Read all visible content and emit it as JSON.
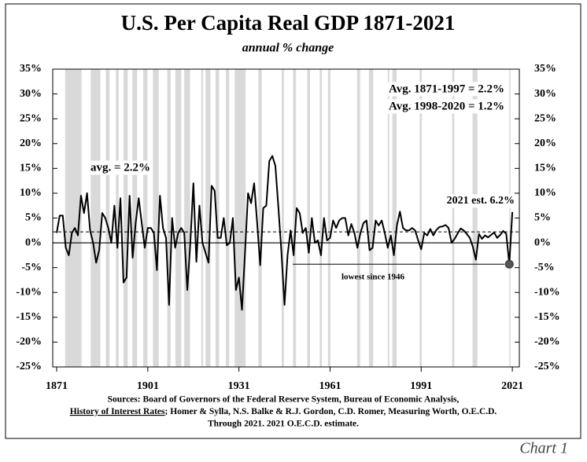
{
  "chart_data": {
    "type": "line",
    "title": "U.S. Per Capita Real GDP 1871-2021",
    "subtitle": "annual % change",
    "x": [
      1871,
      1872,
      1873,
      1874,
      1875,
      1876,
      1877,
      1878,
      1879,
      1880,
      1881,
      1882,
      1883,
      1884,
      1885,
      1886,
      1887,
      1888,
      1889,
      1890,
      1891,
      1892,
      1893,
      1894,
      1895,
      1896,
      1897,
      1898,
      1899,
      1900,
      1901,
      1902,
      1903,
      1904,
      1905,
      1906,
      1907,
      1908,
      1909,
      1910,
      1911,
      1912,
      1913,
      1914,
      1915,
      1916,
      1917,
      1918,
      1919,
      1920,
      1921,
      1922,
      1923,
      1924,
      1925,
      1926,
      1927,
      1928,
      1929,
      1930,
      1931,
      1932,
      1933,
      1934,
      1935,
      1936,
      1937,
      1938,
      1939,
      1940,
      1941,
      1942,
      1943,
      1944,
      1945,
      1946,
      1947,
      1948,
      1949,
      1950,
      1951,
      1952,
      1953,
      1954,
      1955,
      1956,
      1957,
      1958,
      1959,
      1960,
      1961,
      1962,
      1963,
      1964,
      1965,
      1966,
      1967,
      1968,
      1969,
      1970,
      1971,
      1972,
      1973,
      1974,
      1975,
      1976,
      1977,
      1978,
      1979,
      1980,
      1981,
      1982,
      1983,
      1984,
      1985,
      1986,
      1987,
      1988,
      1989,
      1990,
      1991,
      1992,
      1993,
      1994,
      1995,
      1996,
      1997,
      1998,
      1999,
      2000,
      2001,
      2002,
      2003,
      2004,
      2005,
      2006,
      2007,
      2008,
      2009,
      2010,
      2011,
      2012,
      2013,
      2014,
      2015,
      2016,
      2017,
      2018,
      2019,
      2020,
      2021
    ],
    "values": [
      2,
      5.5,
      5.5,
      -1,
      -2.5,
      2,
      3,
      1.5,
      9.5,
      6,
      10,
      2.5,
      0,
      -4,
      -1.5,
      6,
      5,
      3,
      0,
      7.5,
      -1,
      9,
      -8,
      -7,
      9.5,
      -3,
      4,
      9,
      4,
      -1,
      3,
      3,
      2,
      -5.5,
      9.5,
      3,
      1,
      -12.5,
      5,
      -1,
      2,
      3,
      2,
      -9.5,
      0,
      12,
      -3.8,
      7.5,
      0,
      -2,
      -4,
      11.5,
      10.5,
      1,
      1,
      5,
      -0.5,
      0,
      5,
      -9.5,
      -7,
      -13.5,
      -2,
      10,
      8,
      12,
      4,
      -4.5,
      7,
      7.5,
      16.5,
      17.5,
      15.5,
      7,
      -2,
      -12.5,
      -2.5,
      2.5,
      -2.5,
      7,
      6,
      2,
      3,
      -2,
      5,
      0,
      0.5,
      -2.5,
      5,
      0.5,
      1,
      4.5,
      3,
      4.5,
      5,
      5,
      1.5,
      3.8,
      2,
      -1,
      2,
      4,
      4.5,
      -1.5,
      -1,
      4.5,
      3.5,
      4.5,
      2,
      -1,
      1.5,
      -2.5,
      3.5,
      6.3,
      3,
      2.5,
      2.5,
      3,
      2.5,
      0.5,
      -1.3,
      2,
      1.5,
      2.8,
      1.5,
      2.6,
      3.2,
      3.3,
      3.6,
      3,
      0,
      0.8,
      1.9,
      2.9,
      2.5,
      1.8,
      1,
      -0.8,
      -3.4,
      1.8,
      0.8,
      1.5,
      1.1,
      1.6,
      2.1,
      1,
      1.6,
      2.4,
      1.8,
      -4.3,
      6.2
    ],
    "color": "#000000",
    "average": 2.2,
    "shaded_periods": [
      [
        1873.8,
        1879.2
      ],
      [
        1882.2,
        1885.4
      ],
      [
        1887.2,
        1888.4
      ],
      [
        1890.5,
        1891.4
      ],
      [
        1893.0,
        1894.4
      ],
      [
        1895.9,
        1897.5
      ],
      [
        1899.5,
        1900.9
      ],
      [
        1902.7,
        1904.6
      ],
      [
        1907.4,
        1908.5
      ],
      [
        1910.1,
        1912.0
      ],
      [
        1913.0,
        1914.9
      ],
      [
        1918.6,
        1919.2
      ],
      [
        1920.0,
        1921.6
      ],
      [
        1923.3,
        1924.5
      ],
      [
        1926.7,
        1927.8
      ],
      [
        1929.6,
        1933.2
      ],
      [
        1937.4,
        1938.5
      ],
      [
        1945.1,
        1945.8
      ],
      [
        1948.8,
        1949.8
      ],
      [
        1953.5,
        1954.4
      ],
      [
        1957.6,
        1958.3
      ],
      [
        1960.3,
        1961.1
      ],
      [
        1969.9,
        1970.9
      ],
      [
        1973.8,
        1975.2
      ],
      [
        1980.0,
        1980.5
      ],
      [
        1981.5,
        1982.9
      ],
      [
        1990.5,
        1991.2
      ],
      [
        2001.2,
        2001.9
      ],
      [
        2007.9,
        2009.5
      ],
      [
        2020.0,
        2020.4
      ]
    ],
    "xlim": [
      1869.7,
      2023.3
    ],
    "xticks": [
      1871,
      1901,
      1931,
      1961,
      1991,
      2021
    ],
    "ylim": [
      -25,
      35
    ],
    "yticks": [
      {
        "value": -25,
        "label": "-25%"
      },
      {
        "value": -20,
        "label": "-20%"
      },
      {
        "value": -15,
        "label": "-15%"
      },
      {
        "value": -10,
        "label": "-10%"
      },
      {
        "value": -5,
        "label": "-5%"
      },
      {
        "value": 0,
        "label": "0%"
      },
      {
        "value": 5,
        "label": "5%"
      },
      {
        "value": 10,
        "label": "10%"
      },
      {
        "value": 15,
        "label": "15%"
      },
      {
        "value": 20,
        "label": "20%"
      },
      {
        "value": 25,
        "label": "25%"
      },
      {
        "value": 30,
        "label": "30%"
      },
      {
        "value": 35,
        "label": "35%"
      }
    ],
    "y2lim": [
      -25,
      35
    ],
    "y2ticks": [
      {
        "value": -25,
        "label": "-25%"
      },
      {
        "value": -20,
        "label": "-20%"
      },
      {
        "value": -15,
        "label": "-15%"
      },
      {
        "value": -10,
        "label": "-10%"
      },
      {
        "value": -5,
        "label": "-5%"
      },
      {
        "value": 0,
        "label": "0%"
      },
      {
        "value": 5,
        "label": "5%"
      },
      {
        "value": 10,
        "label": "10%"
      },
      {
        "value": 15,
        "label": "15%"
      },
      {
        "value": 20,
        "label": "20%"
      },
      {
        "value": 25,
        "label": "25%"
      },
      {
        "value": 30,
        "label": "30%"
      },
      {
        "value": 35,
        "label": "35%"
      }
    ],
    "annotations": [
      "Avg. 1871-1997 = 2.2%",
      "Avg. 1998-2020 = 1.2%",
      "avg. = 2.2%",
      "2021 est. 6.2%",
      "lowest since 1946"
    ],
    "sources": {
      "line1": "Sources: Board of Governors of the Federal Reserve System, Bureau of Economic Analysis,",
      "book": "History of Interest Rates",
      "line2": "; Homer & Sylla, N.S. Balke & R.J. Gordon, C.D. Romer, Measuring Worth, O.E.C.D.",
      "line3": "Through 2021. 2021 O.E.C.D. estimate."
    },
    "chart_label": "Chart 1"
  }
}
